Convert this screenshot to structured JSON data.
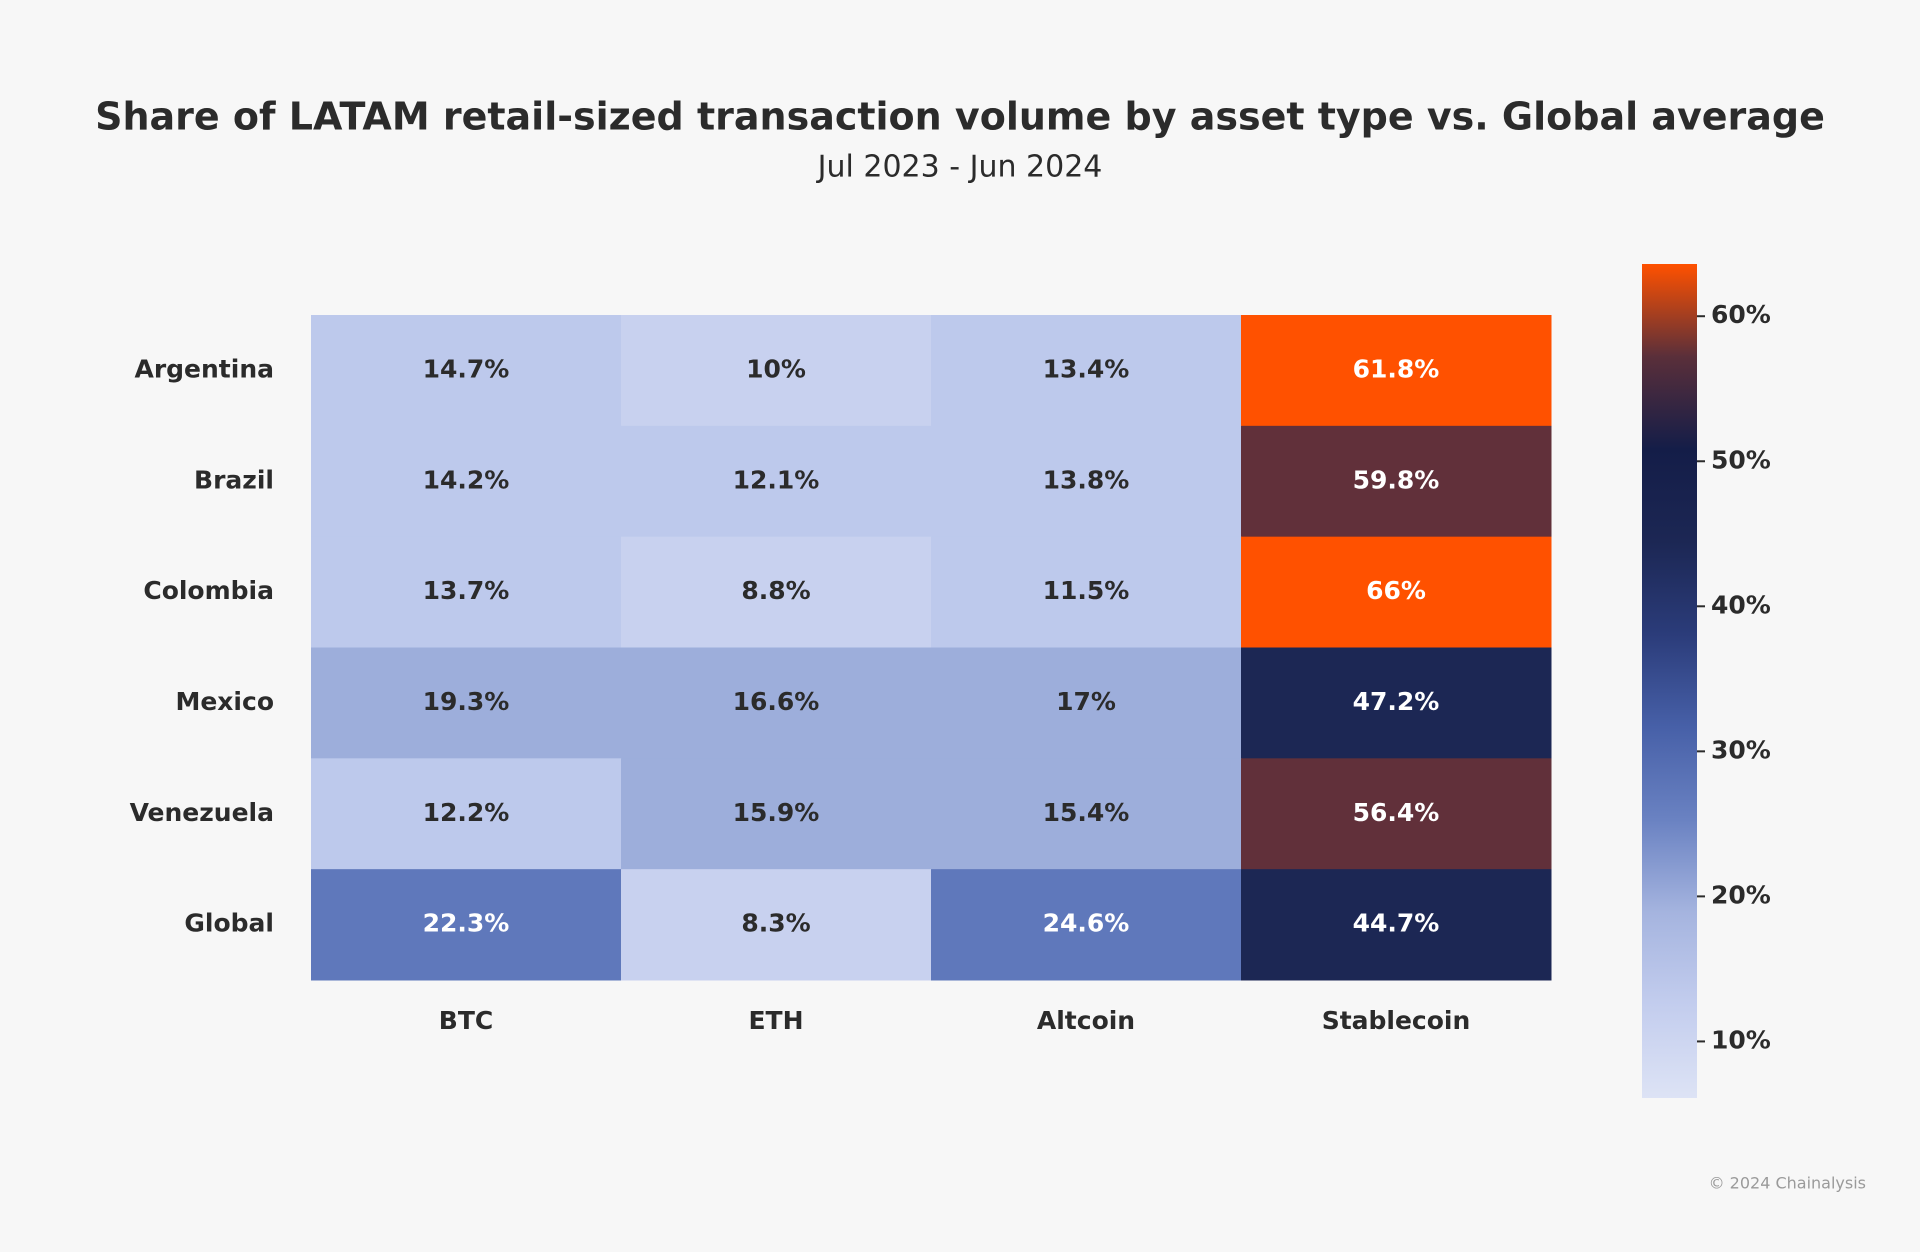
{
  "chart_data": {
    "type": "heatmap",
    "title": "Share of LATAM retail-sized transaction volume by asset type vs. Global average",
    "subtitle": "Jul 2023 - Jun 2024",
    "rows": [
      "Argentina",
      "Brazil",
      "Colombia",
      "Mexico",
      "Venezuela",
      "Global"
    ],
    "columns": [
      "BTC",
      "ETH",
      "Altcoin",
      "Stablecoin"
    ],
    "values": [
      [
        14.7,
        10,
        13.4,
        61.8
      ],
      [
        14.2,
        12.1,
        13.8,
        59.8
      ],
      [
        13.7,
        8.8,
        11.5,
        66
      ],
      [
        19.3,
        16.6,
        17,
        47.2
      ],
      [
        12.2,
        15.9,
        15.4,
        56.4
      ],
      [
        22.3,
        8.3,
        24.6,
        44.7
      ]
    ],
    "value_labels": [
      [
        "14.7%",
        "10%",
        "13.4%",
        "61.8%"
      ],
      [
        "14.2%",
        "12.1%",
        "13.8%",
        "59.8%"
      ],
      [
        "13.7%",
        "8.8%",
        "11.5%",
        "66%"
      ],
      [
        "19.3%",
        "16.6%",
        "17%",
        "47.2%"
      ],
      [
        "12.2%",
        "15.9%",
        "15.4%",
        "56.4%"
      ],
      [
        "22.3%",
        "8.3%",
        "24.6%",
        "44.7%"
      ]
    ],
    "colors": [
      [
        "#bdc9ec",
        "#c8d1ef",
        "#bdc9ec",
        "#ff5100"
      ],
      [
        "#bdc9ec",
        "#bdc9ec",
        "#bdc9ec",
        "#61303a"
      ],
      [
        "#bdc9ec",
        "#c8d1ef",
        "#bdc9ec",
        "#ff5100"
      ],
      [
        "#9daedb",
        "#9daedb",
        "#9daedb",
        "#1c2754"
      ],
      [
        "#bdc9ec",
        "#9daedb",
        "#9daedb",
        "#61303a"
      ],
      [
        "#5f78bb",
        "#c8d1ef",
        "#5f78bb",
        "#1c2754"
      ]
    ],
    "colorbar_colors": [
      "#dde3f5",
      "#c3cdee",
      "#a5b4df",
      "#6a82c2",
      "#4760a8",
      "#2b3c7a",
      "#1c2754",
      "#141d48",
      "#5a2f3a",
      "#ff5100"
    ],
    "clim": [
      6.1,
      63.6
    ],
    "cticks": [
      {
        "value": 10,
        "label": "10%"
      },
      {
        "value": 20,
        "label": "20%"
      },
      {
        "value": 30,
        "label": "30%"
      },
      {
        "value": 40,
        "label": "40%"
      },
      {
        "value": 50,
        "label": "50%"
      },
      {
        "value": 60,
        "label": "60%"
      }
    ],
    "footer": "© 2024 Chainalysis"
  }
}
